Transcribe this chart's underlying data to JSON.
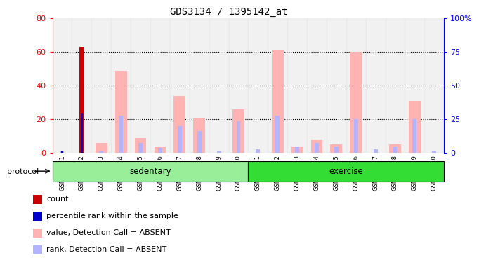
{
  "title": "GDS3134 / 1395142_at",
  "samples": [
    "GSM184851",
    "GSM184852",
    "GSM184853",
    "GSM184854",
    "GSM184855",
    "GSM184856",
    "GSM184857",
    "GSM184858",
    "GSM184859",
    "GSM184860",
    "GSM184861",
    "GSM184862",
    "GSM184863",
    "GSM184864",
    "GSM184865",
    "GSM184866",
    "GSM184867",
    "GSM184868",
    "GSM184869",
    "GSM184870"
  ],
  "count": [
    0,
    63,
    0,
    0,
    0,
    0,
    0,
    0,
    0,
    0,
    0,
    0,
    0,
    0,
    0,
    0,
    0,
    0,
    0,
    0
  ],
  "percentile_rank": [
    1,
    24,
    0,
    0,
    0,
    0,
    0,
    0,
    0,
    0,
    0,
    0,
    0,
    0,
    0,
    0,
    0,
    0,
    0,
    0
  ],
  "value_absent": [
    0,
    0,
    6,
    49,
    9,
    4,
    34,
    21,
    0,
    26,
    0,
    61,
    4,
    8,
    5,
    60,
    0,
    5,
    31,
    0
  ],
  "rank_absent": [
    1,
    0,
    1,
    22,
    6,
    3,
    16,
    13,
    1,
    19,
    2,
    22,
    4,
    6,
    4,
    20,
    2,
    4,
    20,
    1
  ],
  "groups": {
    "sedentary": [
      0,
      9
    ],
    "exercise": [
      10,
      19
    ]
  },
  "ylim_left": [
    0,
    80
  ],
  "ylim_right": [
    0,
    100
  ],
  "yticks_left": [
    0,
    20,
    40,
    60,
    80
  ],
  "yticks_right": [
    0,
    25,
    50,
    75,
    100
  ],
  "color_count": "#cc0000",
  "color_rank": "#0000cc",
  "color_value_absent": "#ffb3b3",
  "color_rank_absent": "#b3b3ff",
  "color_sedentary": "#99ee99",
  "color_exercise": "#33dd33",
  "color_bg_bar": "#e8e8e8",
  "bar_width": 0.6,
  "small_bar_ratio": 0.35,
  "legend_items": [
    [
      "#cc0000",
      "count"
    ],
    [
      "#0000cc",
      "percentile rank within the sample"
    ],
    [
      "#ffb3b3",
      "value, Detection Call = ABSENT"
    ],
    [
      "#b3b3ff",
      "rank, Detection Call = ABSENT"
    ]
  ]
}
